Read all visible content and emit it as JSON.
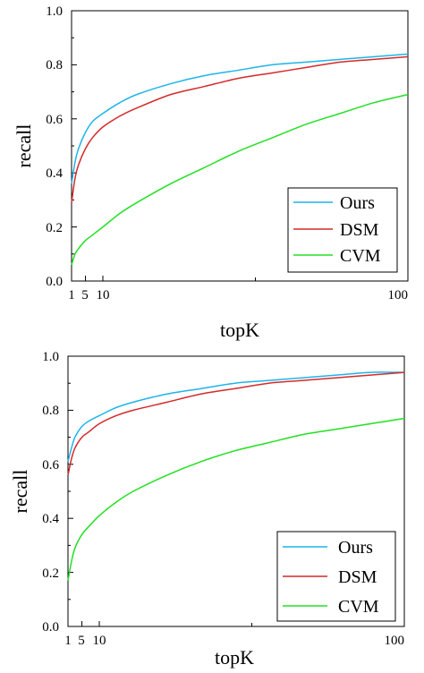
{
  "chart_data": [
    {
      "type": "line",
      "title": "",
      "xlabel": "topK",
      "ylabel": "recall",
      "xlim": [
        1,
        100
      ],
      "ylim": [
        0.0,
        1.0
      ],
      "x_ticks": [
        "1",
        "5",
        "10",
        "100"
      ],
      "y_ticks": [
        "0.0",
        "0.2",
        "0.4",
        "0.6",
        "0.8",
        "1.0"
      ],
      "grid": false,
      "legend_position": "bottom-right",
      "x": [
        1,
        2,
        3,
        5,
        7,
        10,
        15,
        20,
        30,
        40,
        50,
        60,
        70,
        80,
        90,
        100
      ],
      "series": [
        {
          "name": "Ours",
          "color": "#1fb4e8",
          "values": [
            0.36,
            0.44,
            0.49,
            0.55,
            0.59,
            0.62,
            0.66,
            0.69,
            0.73,
            0.76,
            0.78,
            0.8,
            0.81,
            0.82,
            0.83,
            0.84
          ]
        },
        {
          "name": "DSM",
          "color": "#d42a2a",
          "values": [
            0.29,
            0.38,
            0.43,
            0.49,
            0.53,
            0.57,
            0.61,
            0.64,
            0.69,
            0.72,
            0.75,
            0.77,
            0.79,
            0.81,
            0.82,
            0.83
          ]
        },
        {
          "name": "CVM",
          "color": "#22e022",
          "values": [
            0.06,
            0.1,
            0.12,
            0.15,
            0.17,
            0.2,
            0.25,
            0.29,
            0.36,
            0.42,
            0.48,
            0.53,
            0.58,
            0.62,
            0.66,
            0.69
          ]
        }
      ]
    },
    {
      "type": "line",
      "title": "",
      "xlabel": "topK",
      "ylabel": "recall",
      "xlim": [
        1,
        100
      ],
      "ylim": [
        0.0,
        1.0
      ],
      "x_ticks": [
        "1",
        "5",
        "10",
        "100"
      ],
      "y_ticks": [
        "0.0",
        "0.2",
        "0.4",
        "0.6",
        "0.8",
        "1.0"
      ],
      "grid": false,
      "legend_position": "bottom-right",
      "x": [
        1,
        2,
        3,
        5,
        7,
        10,
        15,
        20,
        30,
        40,
        50,
        60,
        70,
        80,
        90,
        100
      ],
      "series": [
        {
          "name": "Ours",
          "color": "#1fb4e8",
          "values": [
            0.61,
            0.66,
            0.7,
            0.74,
            0.76,
            0.78,
            0.81,
            0.83,
            0.86,
            0.88,
            0.9,
            0.91,
            0.92,
            0.93,
            0.94,
            0.94
          ]
        },
        {
          "name": "DSM",
          "color": "#d42a2a",
          "values": [
            0.56,
            0.62,
            0.66,
            0.7,
            0.72,
            0.75,
            0.78,
            0.8,
            0.83,
            0.86,
            0.88,
            0.9,
            0.91,
            0.92,
            0.93,
            0.94
          ]
        },
        {
          "name": "CVM",
          "color": "#22e022",
          "values": [
            0.17,
            0.24,
            0.29,
            0.34,
            0.37,
            0.41,
            0.46,
            0.5,
            0.56,
            0.61,
            0.65,
            0.68,
            0.71,
            0.73,
            0.75,
            0.77
          ]
        }
      ]
    }
  ]
}
